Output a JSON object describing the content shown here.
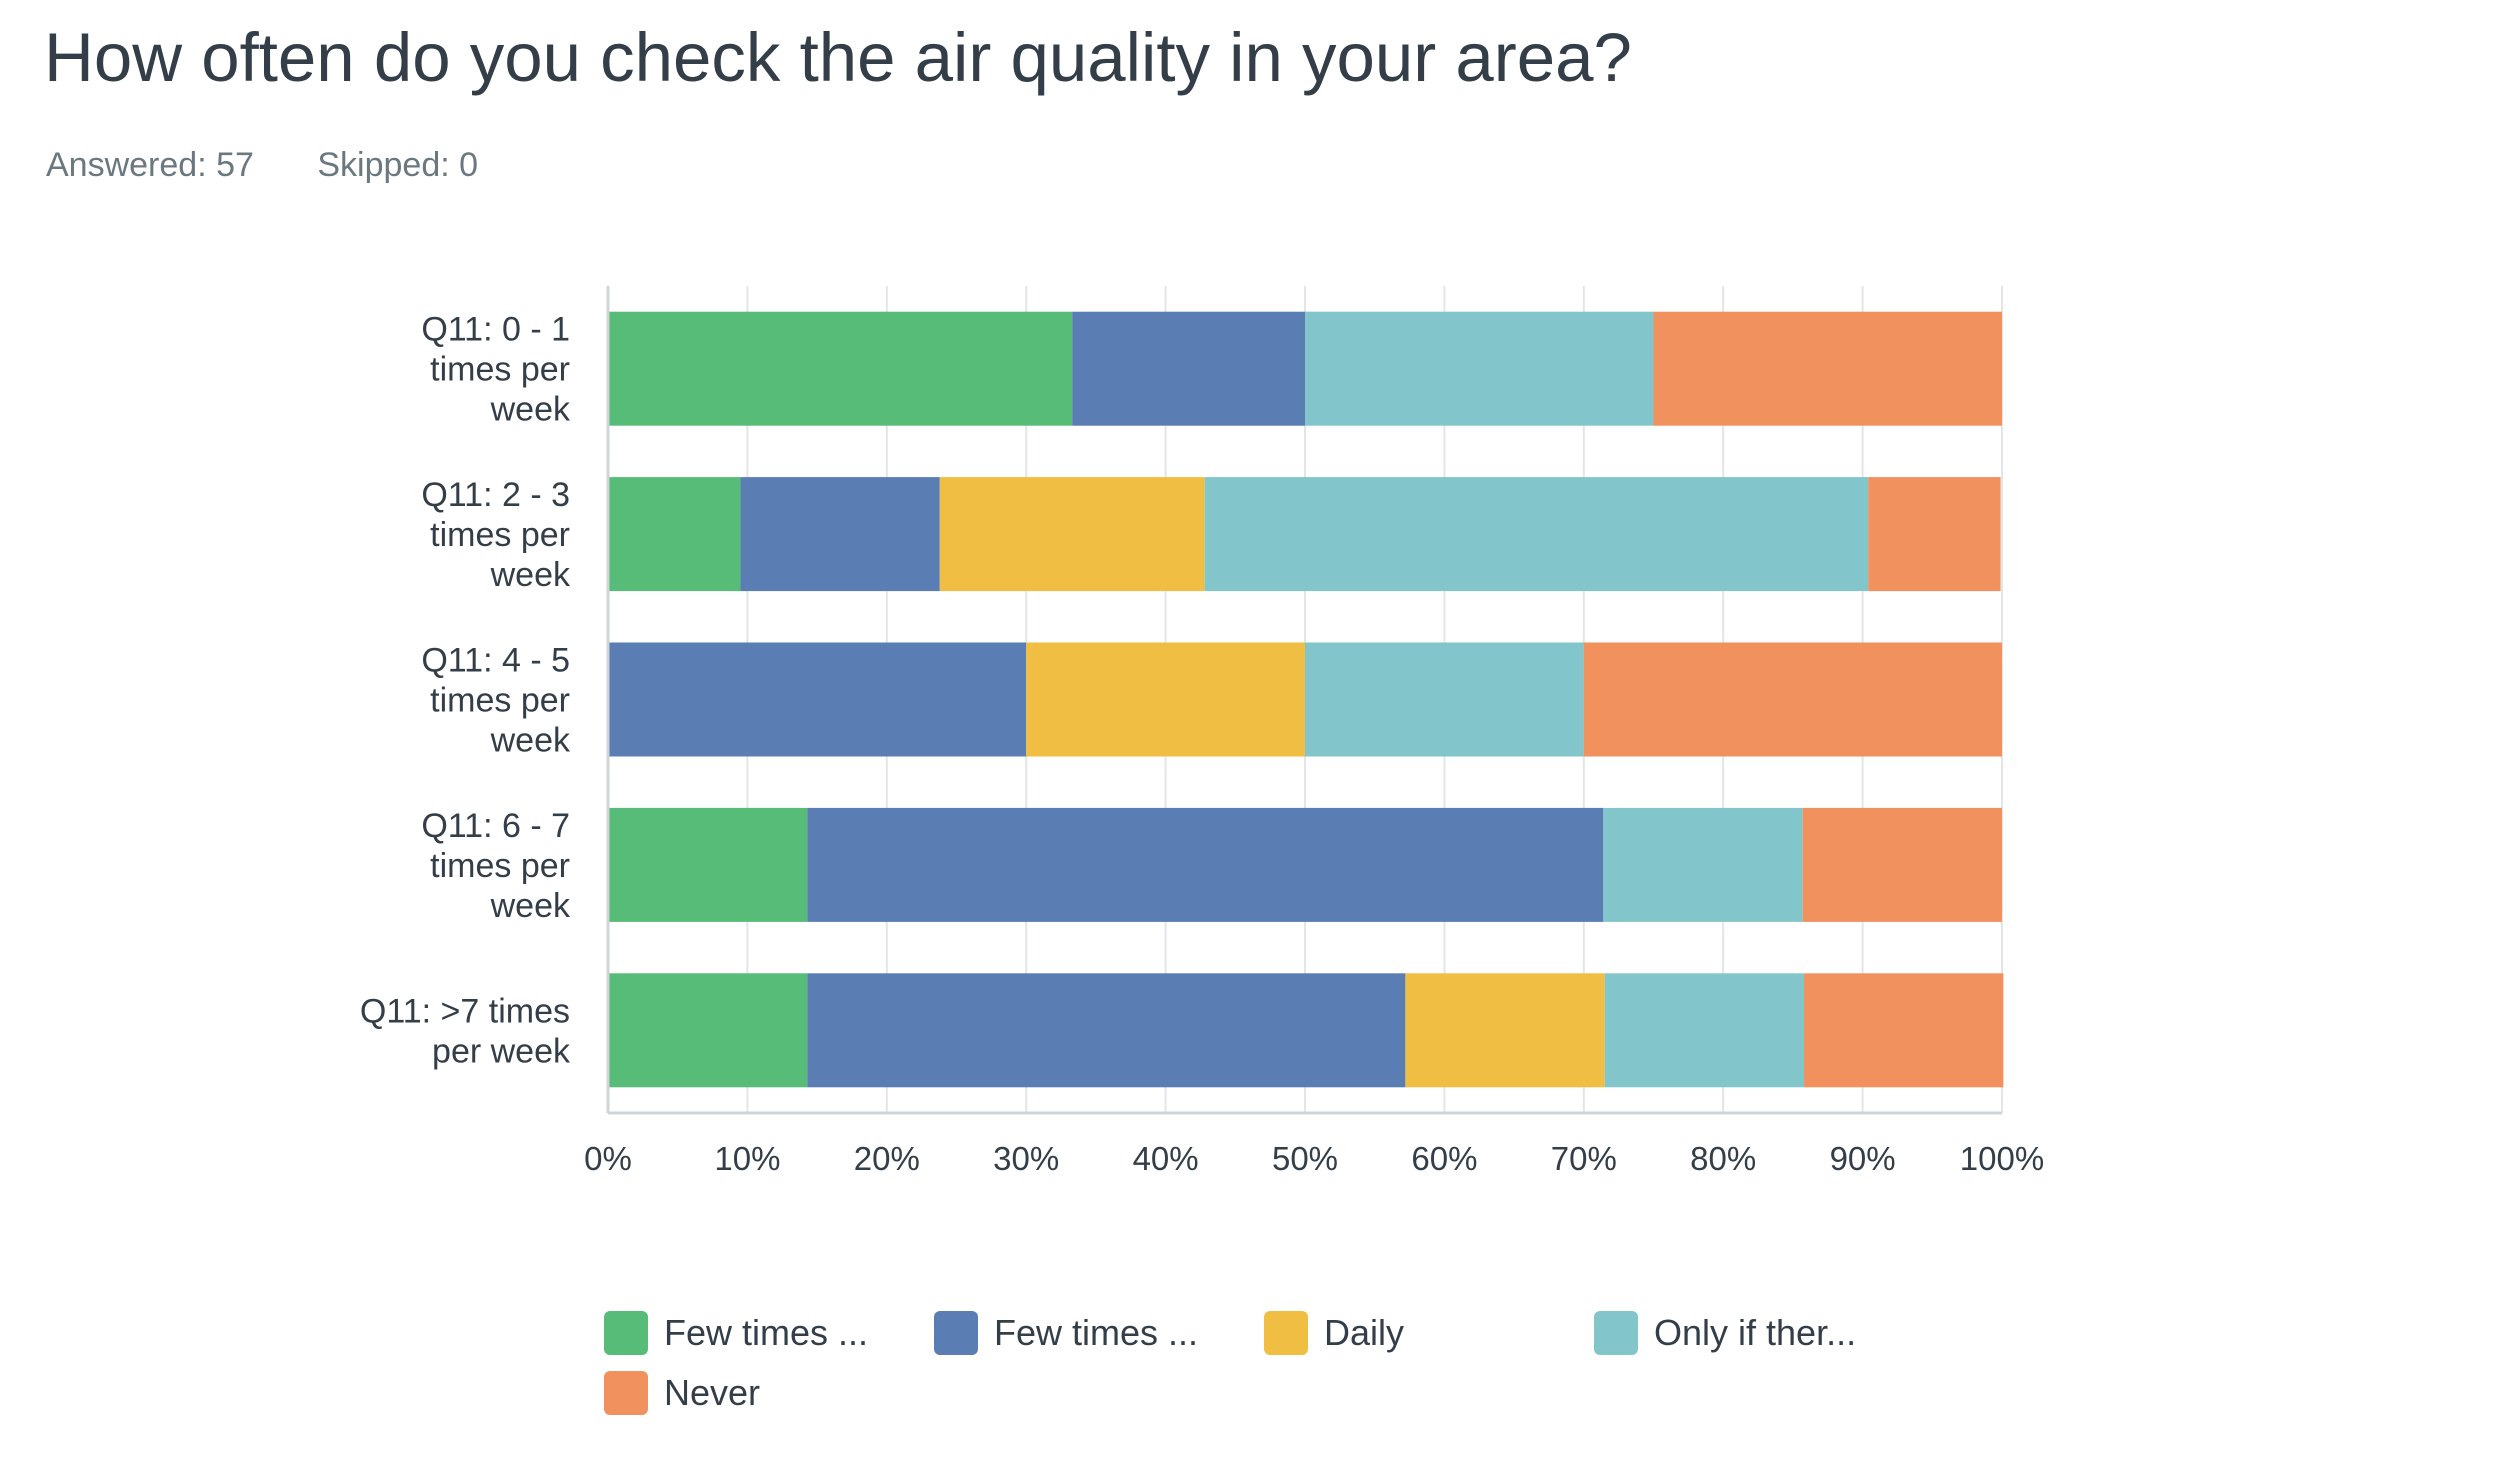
{
  "page": {
    "title": "How often do you check the air quality in your area?",
    "answered": "Answered: 57",
    "skipped": "Skipped: 0"
  },
  "chart_data": {
    "type": "bar",
    "orientation": "horizontal",
    "stacked": true,
    "categories": [
      [
        "Q11: 0 - 1",
        "times per",
        "week"
      ],
      [
        "Q11: 2 - 3",
        "times per",
        "week"
      ],
      [
        "Q11: 4 - 5",
        "times per",
        "week"
      ],
      [
        "Q11: 6 - 7",
        "times per",
        "week"
      ],
      [
        "Q11: >7 times",
        "per week"
      ]
    ],
    "series": [
      {
        "name": "Few times ...",
        "color": "#57bc77",
        "values": [
          33.3,
          9.5,
          0,
          14.3,
          14.3
        ]
      },
      {
        "name": "Few times ...",
        "color": "#5a7db4",
        "values": [
          16.7,
          14.3,
          30,
          57.1,
          42.9
        ]
      },
      {
        "name": "Daily",
        "color": "#f0be42",
        "values": [
          0,
          19.0,
          20,
          0,
          14.3
        ]
      },
      {
        "name": "Only if ther...",
        "color": "#82c6cb",
        "values": [
          25,
          47.6,
          20,
          14.3,
          14.3
        ]
      },
      {
        "name": "Never",
        "color": "#f0915e",
        "values": [
          25,
          9.5,
          30,
          14.3,
          14.3
        ]
      }
    ],
    "x_ticks": [
      "0%",
      "10%",
      "20%",
      "30%",
      "40%",
      "50%",
      "60%",
      "70%",
      "80%",
      "90%",
      "100%"
    ],
    "xlim": [
      0,
      100
    ],
    "grid": true,
    "legend_position": "bottom"
  }
}
